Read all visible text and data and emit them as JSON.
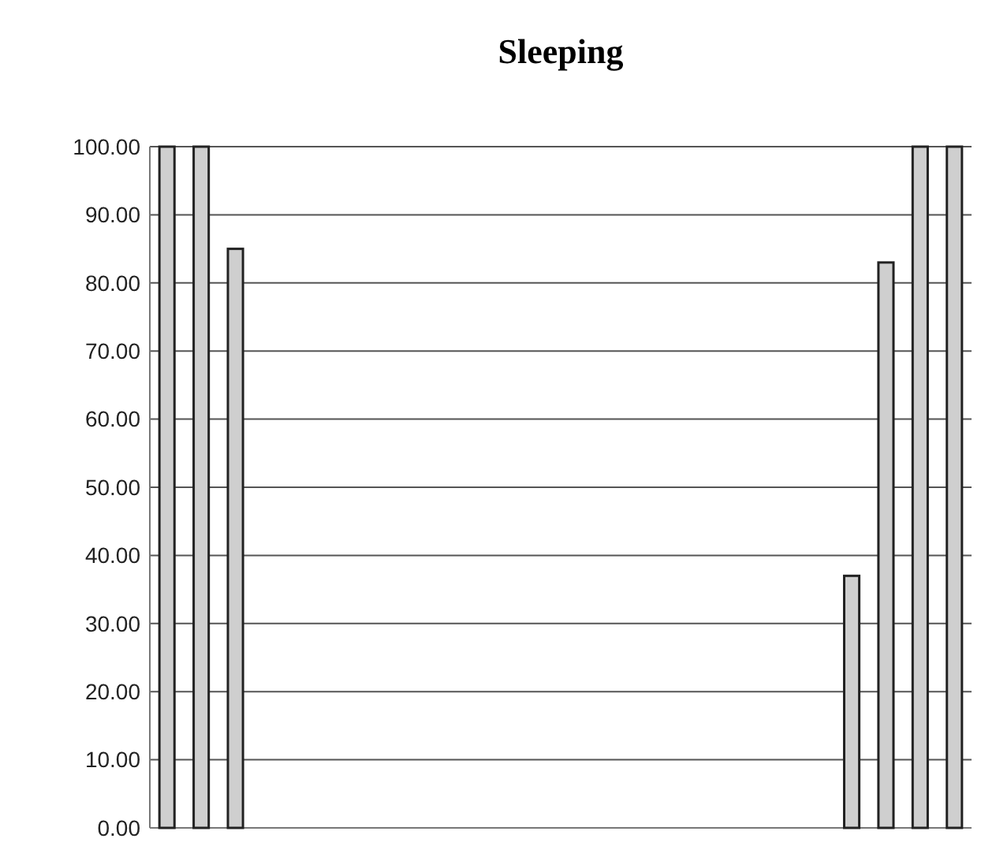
{
  "chart_data": {
    "type": "bar",
    "title": "Sleeping",
    "categories": [
      null,
      null,
      null,
      null,
      null,
      null,
      null,
      null,
      null,
      null,
      null,
      null,
      null,
      null,
      null,
      null,
      null,
      null,
      null,
      null,
      null,
      null,
      null,
      null
    ],
    "values": [
      100,
      100,
      85,
      0,
      0,
      0,
      0,
      0,
      0,
      0,
      0,
      0,
      0,
      0,
      0,
      0,
      0,
      0,
      0,
      0,
      37,
      83,
      100,
      100
    ],
    "color": "#cfcfcf",
    "ylim": [
      0,
      100
    ],
    "yticks": [
      {
        "value": 0,
        "label": "0.00"
      },
      {
        "value": 10,
        "label": "10.00"
      },
      {
        "value": 20,
        "label": "20.00"
      },
      {
        "value": 30,
        "label": "30.00"
      },
      {
        "value": 40,
        "label": "40.00"
      },
      {
        "value": 50,
        "label": "50.00"
      },
      {
        "value": 60,
        "label": "60.00"
      },
      {
        "value": 70,
        "label": "70.00"
      },
      {
        "value": 80,
        "label": "80.00"
      },
      {
        "value": 90,
        "label": "90.00"
      },
      {
        "value": 100,
        "label": "100.00"
      }
    ],
    "grid": "y"
  }
}
